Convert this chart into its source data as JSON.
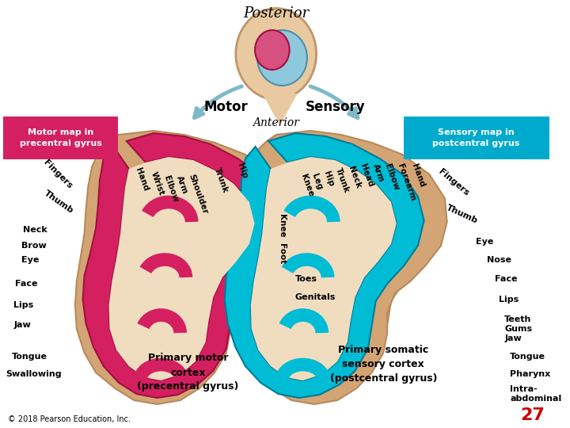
{
  "title": "Posterior",
  "bg_color": "#ffffff",
  "motor_label": "Motor",
  "sensory_label": "Sensory",
  "anterior_label": "Anterior",
  "motor_box_text": "Motor map in\nprecentral gyrus",
  "motor_box_color": "#d42060",
  "motor_box_text_color": "#ffffff",
  "sensory_box_text": "Sensory map in\npostcentral gyrus",
  "sensory_box_color": "#00aacc",
  "sensory_box_text_color": "#ffffff",
  "primary_motor_text": "Primary motor\ncortex\n(precentral gyrus)",
  "primary_sensory_text": "Primary somatic\nsensory cortex\n(postcentral gyrus)",
  "toes_label": "Toes",
  "genitals_label": "Genitals",
  "copyright": "© 2018 Pearson Education, Inc.",
  "page_number": "27",
  "page_number_color": "#cc0000",
  "motor_cortex_color": "#d42060",
  "sensory_cortex_color": "#00bcd4",
  "skin_color": "#d4a574",
  "skin_edge_color": "#b8895a",
  "cortex_inner_color": "#f0ddc0",
  "arrow_color": "#7fb8c8",
  "brain_color": "#e8c9a0"
}
